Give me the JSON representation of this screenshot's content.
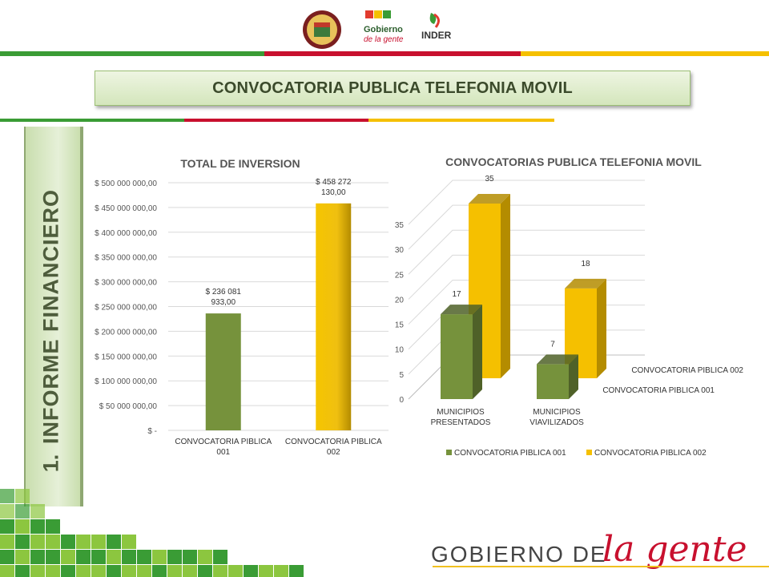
{
  "header": {
    "title": "CONVOCATORIA PUBLICA TELEFONIA MOVIL",
    "logos": [
      "seal-logo",
      "gobierno-de-la-gente-logo",
      "inder-logo"
    ],
    "logo_text": {
      "gobierno": "Gobierno",
      "de_la_gente": "de la gente",
      "inder": "INDER"
    }
  },
  "side_tab": {
    "number": "1.",
    "label": "INFORME  FINANCIERO"
  },
  "footer": {
    "text": "GOBIERNO DE",
    "script": "la gente"
  },
  "colors": {
    "green": "#76923c",
    "yellow": "#f5c000",
    "green_dark": "#4f6128",
    "yellow_dark": "#b48c00",
    "red": "#c8102e",
    "accent_green": "#3a9c35"
  },
  "chart_data": [
    {
      "type": "bar",
      "title": "TOTAL DE INVERSION",
      "categories": [
        "CONVOCATORIA PIBLICA 001",
        "CONVOCATORIA PIBLICA 002"
      ],
      "category_lines": [
        [
          "CONVOCATORIA PIBLICA",
          "001"
        ],
        [
          "CONVOCATORIA PIBLICA",
          "002"
        ]
      ],
      "values": [
        236081933,
        458272130
      ],
      "data_labels": [
        [
          "$ 236 081",
          "933,00"
        ],
        [
          "$ 458 272",
          "130,00"
        ]
      ],
      "ylim": [
        0,
        500000000
      ],
      "yticks": [
        0,
        50000000,
        100000000,
        150000000,
        200000000,
        250000000,
        300000000,
        350000000,
        400000000,
        450000000,
        500000000
      ],
      "ytick_labels": [
        "$ -",
        "$ 50 000 000,00",
        "$ 100 000 000,00",
        "$ 150 000 000,00",
        "$ 200 000 000,00",
        "$ 250 000 000,00",
        "$ 300 000 000,00",
        "$ 350 000 000,00",
        "$ 400 000 000,00",
        "$ 450 000 000,00",
        "$ 500 000 000,00"
      ],
      "grid": true,
      "legend": "none"
    },
    {
      "type": "bar",
      "title": "CONVOCATORIAS PUBLICA TELEFONIA MOVIL",
      "style": "3d-clustered",
      "categories": [
        "MUNICIPIOS PRESENTADOS",
        "MUNICIPIOS VIAVILIZADOS"
      ],
      "category_lines": [
        [
          "MUNICIPIOS",
          "PRESENTADOS"
        ],
        [
          "MUNICIPIOS",
          "VIAVILIZADOS"
        ]
      ],
      "series": [
        {
          "name": "CONVOCATORIA PIBLICA 001",
          "values": [
            17,
            7
          ]
        },
        {
          "name": "CONVOCATORIA PIBLICA 002",
          "values": [
            35,
            18
          ]
        }
      ],
      "ylim": [
        0,
        35
      ],
      "yticks": [
        0,
        5,
        10,
        15,
        20,
        25,
        30,
        35
      ],
      "depth_labels": [
        "CONVOCATORIA PIBLICA 002",
        "CONVOCATORIA PIBLICA 001"
      ],
      "grid": true,
      "legend": "bottom"
    }
  ]
}
